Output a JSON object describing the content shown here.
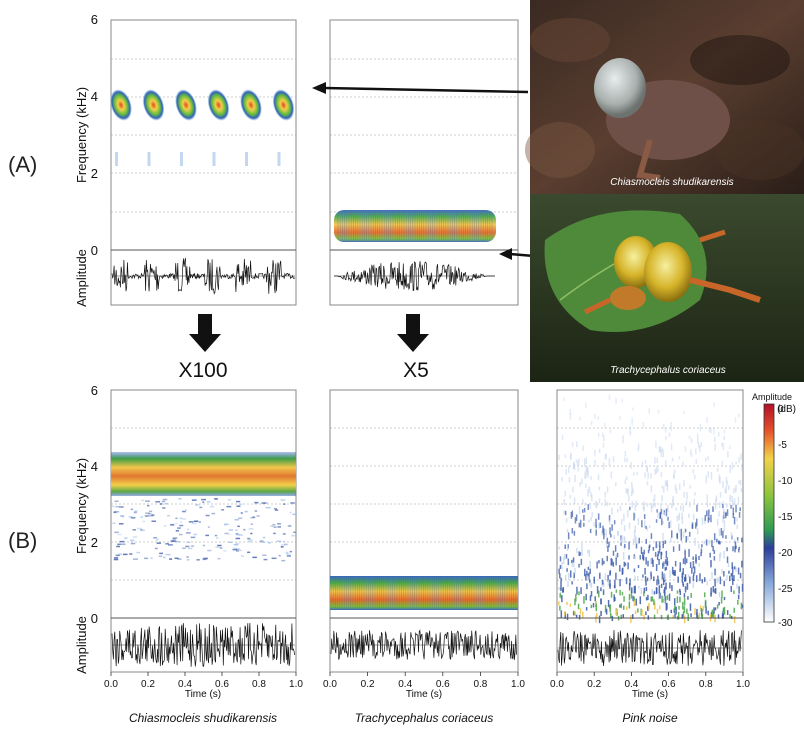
{
  "panels": {
    "a_label": "(A)",
    "b_label": "(B)"
  },
  "axes": {
    "frequency_label": "Frequency (kHz)",
    "amplitude_label": "Amplitude",
    "freq_ticks": [
      "6",
      "4",
      "2",
      "0"
    ],
    "time_label": "Time (s)",
    "time_ticks": [
      "0.0",
      "0.2",
      "0.4",
      "0.6",
      "0.8",
      "1.0"
    ]
  },
  "multipliers": {
    "left": "X100",
    "middle": "X5"
  },
  "photos": {
    "top_caption": "Chiasmocleis shudikarensis",
    "bottom_caption": "Trachycephalus coriaceus"
  },
  "species_labels": {
    "left": "Chiasmocleis shudikarensis",
    "middle": "Trachycephalus coriaceus",
    "right": "Pink noise"
  },
  "colorbar": {
    "title": "Amplitude",
    "unit": "(dB)",
    "ticks": [
      "0",
      "-5",
      "-10",
      "-15",
      "-20",
      "-25",
      "-30"
    ],
    "colors": [
      "#c8102e",
      "#f05a28",
      "#f2d94a",
      "#7cbf3c",
      "#2e4aa8",
      "#8fb0dc",
      "#ffffff"
    ]
  },
  "chart_data": [
    {
      "type": "heatmap",
      "panel": "A-left",
      "ylabel": "Frequency (kHz)",
      "ylim": [
        0,
        6
      ],
      "notes_count": 6,
      "band_khz": [
        3.6,
        4.4
      ]
    },
    {
      "type": "heatmap",
      "panel": "A-middle",
      "ylabel": "Frequency (kHz)",
      "ylim": [
        0,
        6
      ],
      "band_khz": [
        0.3,
        1.0
      ]
    },
    {
      "type": "heatmap",
      "panel": "B-left",
      "xlabel": "Time (s)",
      "ylabel": "Frequency (kHz)",
      "xlim": [
        0.0,
        1.0
      ],
      "ylim": [
        0,
        6
      ],
      "band_khz": [
        3.0,
        4.5
      ]
    },
    {
      "type": "heatmap",
      "panel": "B-middle",
      "xlabel": "Time (s)",
      "xlim": [
        0.0,
        1.0
      ],
      "ylim": [
        0,
        6
      ],
      "band_khz": [
        0.3,
        1.1
      ]
    },
    {
      "type": "heatmap",
      "panel": "B-right",
      "xlabel": "Time (s)",
      "xlim": [
        0.0,
        1.0
      ],
      "ylim": [
        0,
        6
      ],
      "band_khz": [
        0,
        6
      ]
    }
  ]
}
